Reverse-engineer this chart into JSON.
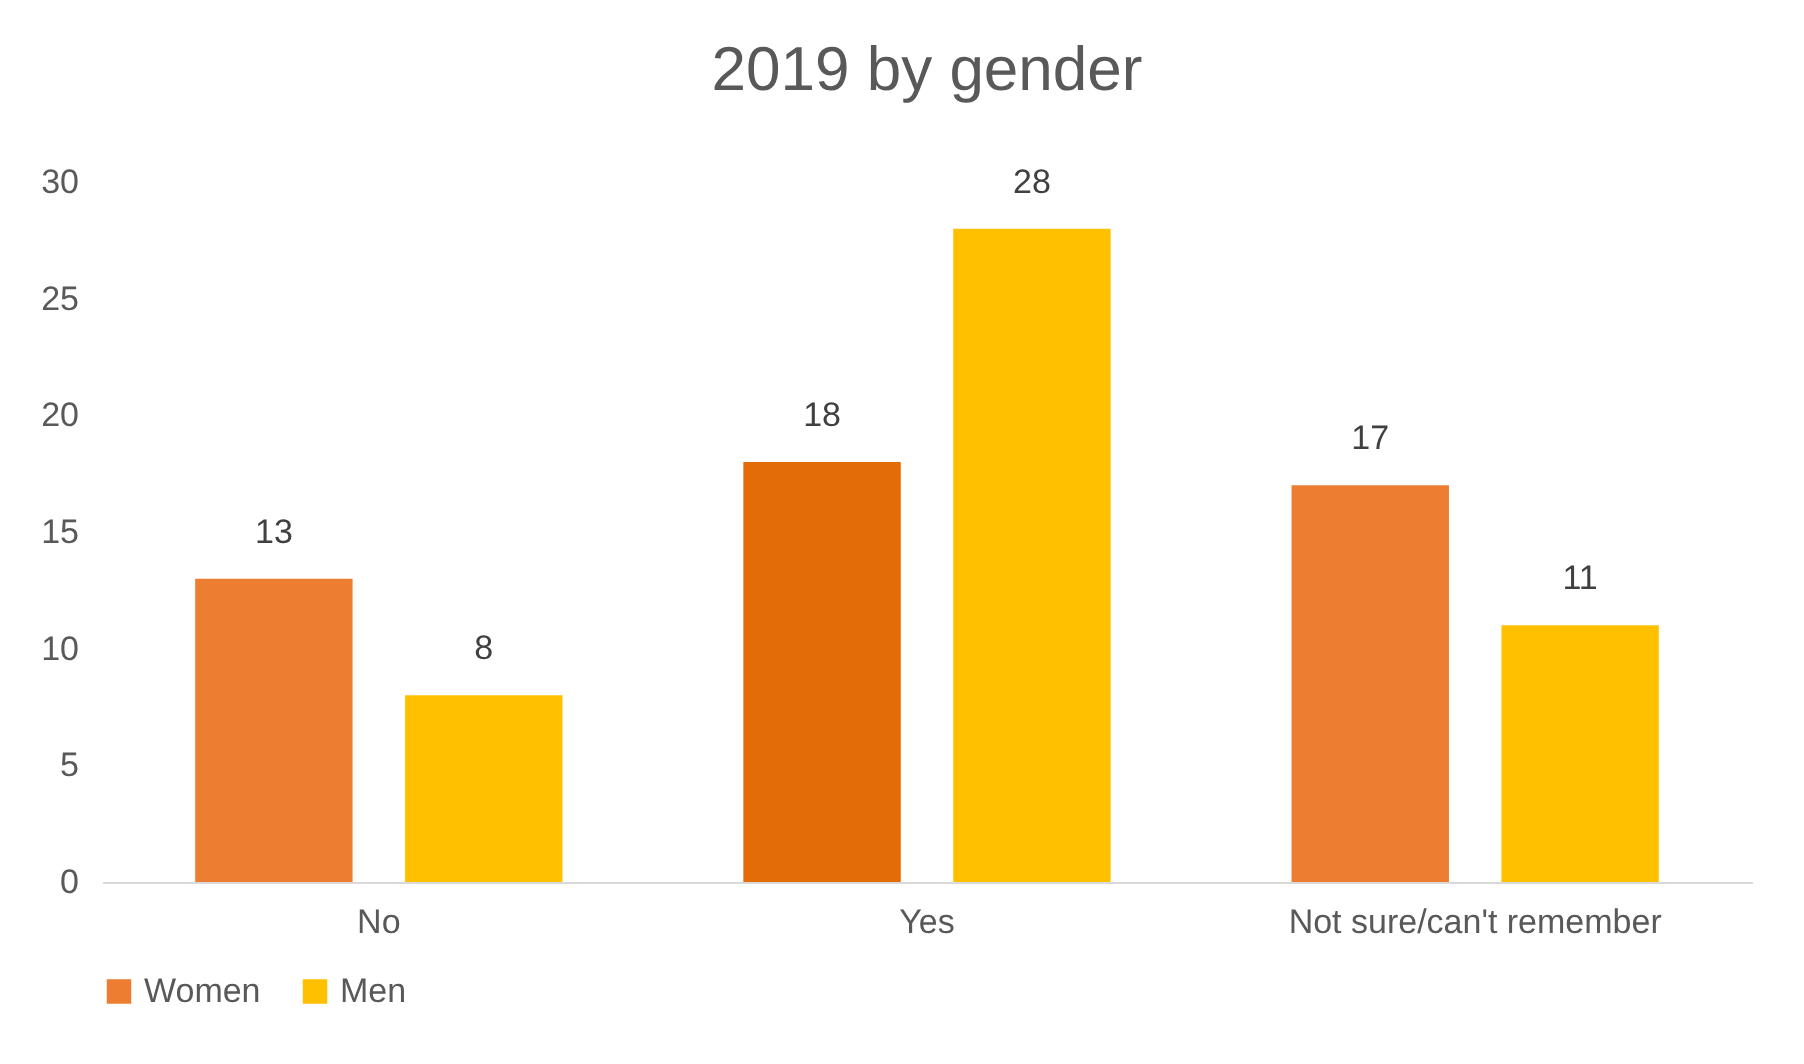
{
  "chart_data": {
    "type": "bar",
    "title": "2019 by gender",
    "categories": [
      "No",
      "Yes",
      "Not sure/can't remember"
    ],
    "series": [
      {
        "name": "Women",
        "color": "#ed7d31",
        "colors": [
          "#ed7d31",
          "#e36c09",
          "#ed7d31"
        ],
        "values": [
          13,
          18,
          17
        ]
      },
      {
        "name": "Men",
        "color": "#ffc000",
        "values": [
          8,
          28,
          11
        ]
      }
    ],
    "ylim": [
      0,
      30
    ],
    "yticks": [
      0,
      5,
      10,
      15,
      20,
      25,
      30
    ],
    "grid": false,
    "legend": "bottom",
    "data_labels": true
  }
}
